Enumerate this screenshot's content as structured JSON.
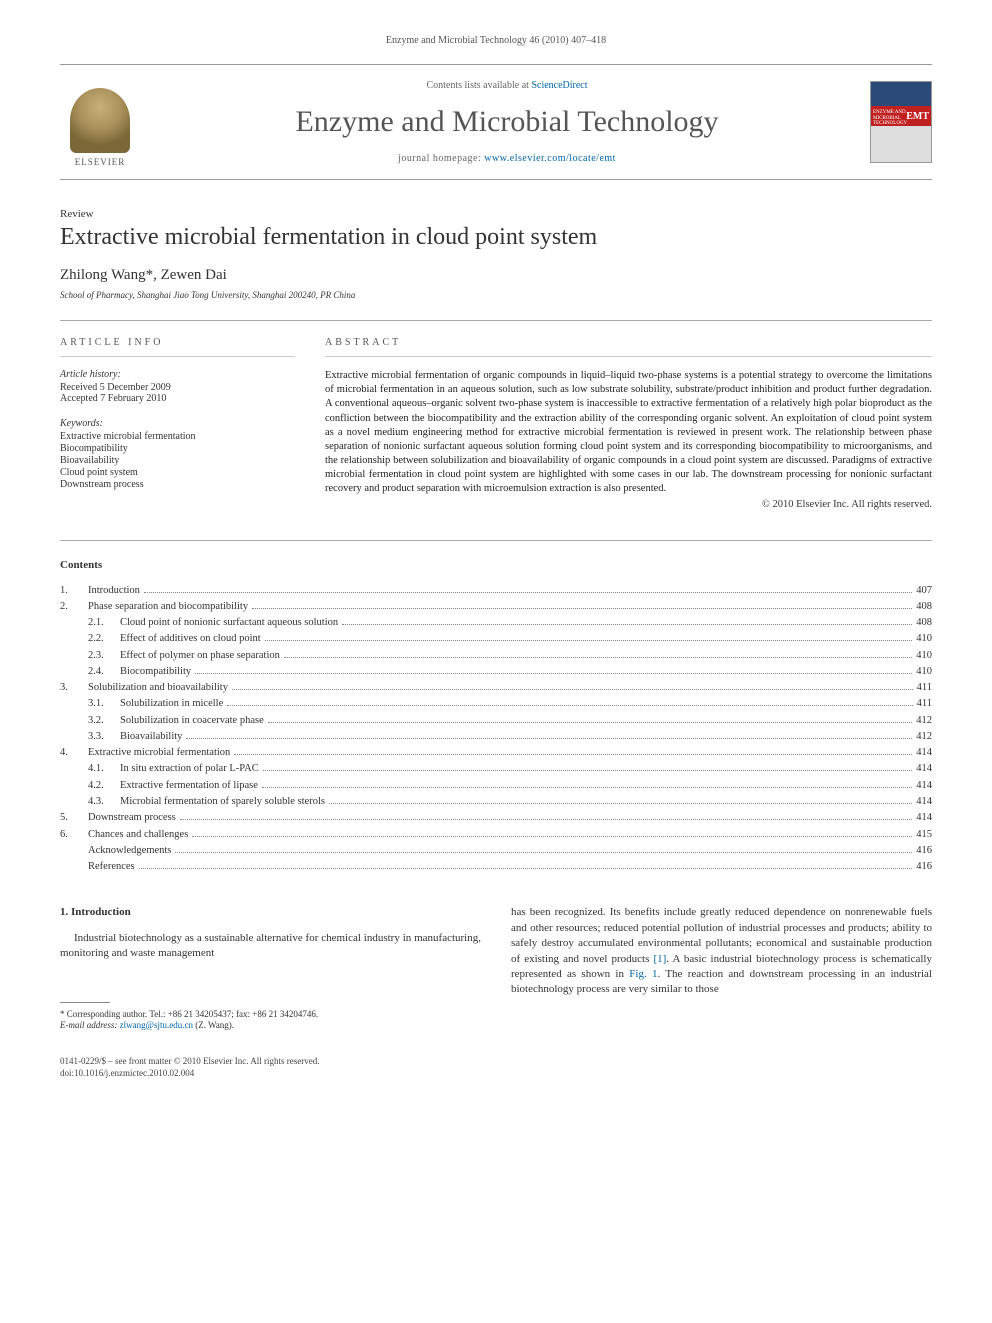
{
  "running_head": "Enzyme and Microbial Technology 46 (2010) 407–418",
  "masthead": {
    "contents_prefix": "Contents lists available at ",
    "contents_link": "ScienceDirect",
    "journal_title": "Enzyme and Microbial Technology",
    "homepage_prefix": "journal homepage: ",
    "homepage_url": "www.elsevier.com/locate/emt",
    "publisher": "ELSEVIER",
    "cover_line1": "ENZYME AND",
    "cover_line2": "MICROBIAL",
    "cover_line3": "TECHNOLOGY",
    "cover_badge": "EMT"
  },
  "article": {
    "type": "Review",
    "title": "Extractive microbial fermentation in cloud point system",
    "authors": "Zhilong Wang*, Zewen Dai",
    "affiliation": "School of Pharmacy, Shanghai Jiao Tong University, Shanghai 200240, PR China"
  },
  "info": {
    "heading": "article info",
    "history_label": "Article history:",
    "received": "Received 5 December 2009",
    "accepted": "Accepted 7 February 2010",
    "keywords_label": "Keywords:",
    "keywords": [
      "Extractive microbial fermentation",
      "Biocompatibility",
      "Bioavailability",
      "Cloud point system",
      "Downstream process"
    ]
  },
  "abstract": {
    "heading": "abstract",
    "text": "Extractive microbial fermentation of organic compounds in liquid–liquid two-phase systems is a potential strategy to overcome the limitations of microbial fermentation in an aqueous solution, such as low substrate solubility, substrate/product inhibition and product further degradation. A conventional aqueous–organic solvent two-phase system is inaccessible to extractive fermentation of a relatively high polar bioproduct as the confliction between the biocompatibility and the extraction ability of the corresponding organic solvent. An exploitation of cloud point system as a novel medium engineering method for extractive microbial fermentation is reviewed in present work. The relationship between phase separation of nonionic surfactant aqueous solution forming cloud point system and its corresponding biocompatibility to microorganisms, and the relationship between solubilization and bioavailability of organic compounds in a cloud point system are discussed. Paradigms of extractive microbial fermentation in cloud point system are highlighted with some cases in our lab. The downstream processing for nonionic surfactant recovery and product separation with microemulsion extraction is also presented.",
    "copyright": "© 2010 Elsevier Inc. All rights reserved."
  },
  "contents": {
    "title": "Contents",
    "items": [
      {
        "num": "1.",
        "label": "Introduction",
        "page": "407",
        "sub": []
      },
      {
        "num": "2.",
        "label": "Phase separation and biocompatibility",
        "page": "408",
        "sub": [
          {
            "num": "2.1.",
            "label": "Cloud point of nonionic surfactant aqueous solution",
            "page": "408"
          },
          {
            "num": "2.2.",
            "label": "Effect of additives on cloud point",
            "page": "410"
          },
          {
            "num": "2.3.",
            "label": "Effect of polymer on phase separation",
            "page": "410"
          },
          {
            "num": "2.4.",
            "label": "Biocompatibility",
            "page": "410"
          }
        ]
      },
      {
        "num": "3.",
        "label": "Solubilization and bioavailability",
        "page": "411",
        "sub": [
          {
            "num": "3.1.",
            "label": "Solubilization in micelle",
            "page": "411"
          },
          {
            "num": "3.2.",
            "label": "Solubilization in coacervate phase",
            "page": "412"
          },
          {
            "num": "3.3.",
            "label": "Bioavailability",
            "page": "412"
          }
        ]
      },
      {
        "num": "4.",
        "label": "Extractive microbial fermentation",
        "page": "414",
        "sub": [
          {
            "num": "4.1.",
            "label": "In situ extraction of polar L-PAC",
            "page": "414"
          },
          {
            "num": "4.2.",
            "label": "Extractive fermentation of lipase",
            "page": "414"
          },
          {
            "num": "4.3.",
            "label": "Microbial fermentation of sparely soluble sterols",
            "page": "414"
          }
        ]
      },
      {
        "num": "5.",
        "label": "Downstream process",
        "page": "414",
        "sub": []
      },
      {
        "num": "6.",
        "label": "Chances and challenges",
        "page": "415",
        "sub": []
      },
      {
        "num": "",
        "label": "Acknowledgements",
        "page": "416",
        "sub": []
      },
      {
        "num": "",
        "label": "References",
        "page": "416",
        "sub": []
      }
    ]
  },
  "body": {
    "section_num": "1.",
    "section_title": "Introduction",
    "left_p1": "Industrial biotechnology as a sustainable alternative for chemical industry in manufacturing, monitoring and waste management",
    "right_p1_a": "has been recognized. Its benefits include greatly reduced dependence on nonrenewable fuels and other resources; reduced potential pollution of industrial processes and products; ability to safely destroy accumulated environmental pollutants; economical and sustainable production of existing and novel products ",
    "ref1": "[1]",
    "right_p1_b": ". A basic industrial biotechnology process is schematically represented as shown in ",
    "fig1": "Fig. 1",
    "right_p1_c": ". The reaction and downstream processing in an industrial biotechnology process are very similar to those"
  },
  "footnote": {
    "corr": "* Corresponding author. Tel.: +86 21 34205437; fax: +86 21 34204746.",
    "email_label": "E-mail address:",
    "email": "zlwang@sjtu.edu.cn",
    "email_suffix": "(Z. Wang)."
  },
  "footer": {
    "line1": "0141-0229/$ – see front matter © 2010 Elsevier Inc. All rights reserved.",
    "line2": "doi:10.1016/j.enzmictec.2010.02.004"
  }
}
